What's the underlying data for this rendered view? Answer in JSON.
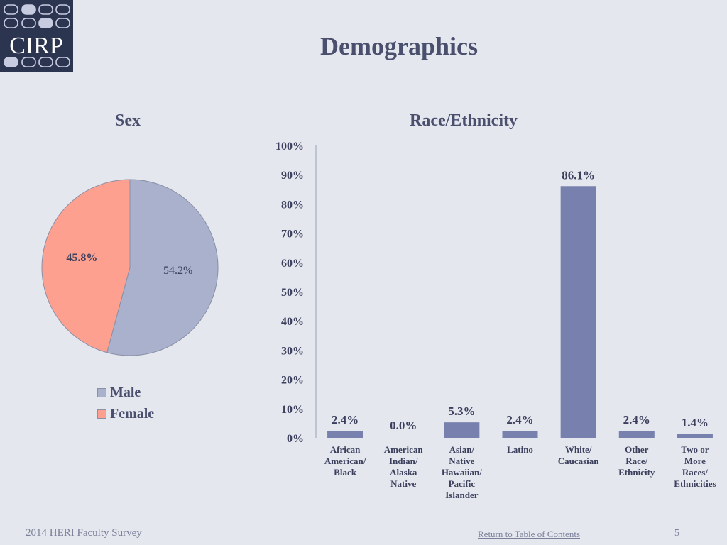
{
  "logo": {
    "text": "CIRP"
  },
  "page_title": "Demographics",
  "colors": {
    "male": "#a9b1cc",
    "female": "#fda090",
    "bar": "#7880ad"
  },
  "chart_data": [
    {
      "type": "pie",
      "title": "Sex",
      "labels": [
        "Male",
        "Female"
      ],
      "values": [
        54.2,
        45.8
      ],
      "data_labels": [
        "54.2%",
        "45.8%"
      ],
      "legend": "bottom"
    },
    {
      "type": "bar",
      "title": "Race/Ethnicity",
      "categories": [
        [
          "African",
          "American/",
          "Black"
        ],
        [
          "American",
          "Indian/",
          "Alaska",
          "Native"
        ],
        [
          "Asian/",
          "Native",
          "Hawaiian/",
          "Pacific",
          "Islander"
        ],
        [
          "Latino"
        ],
        [
          "White/",
          "Caucasian"
        ],
        [
          "Other",
          "Race/",
          "Ethnicity"
        ],
        [
          "Two or",
          "More",
          "Races/",
          "Ethnicities"
        ]
      ],
      "values": [
        2.4,
        0.0,
        5.3,
        2.4,
        86.1,
        2.4,
        1.4
      ],
      "data_labels": [
        "2.4%",
        "0.0%",
        "5.3%",
        "2.4%",
        "86.1%",
        "2.4%",
        "1.4%"
      ],
      "ylim": [
        0,
        100
      ],
      "yticks": [
        "0%",
        "10%",
        "20%",
        "30%",
        "40%",
        "50%",
        "60%",
        "70%",
        "80%",
        "90%",
        "100%"
      ],
      "grid": false
    }
  ],
  "footer": {
    "survey": "2014 HERI Faculty Survey",
    "toc_link": "Return to Table of Contents",
    "page_number": "5"
  }
}
